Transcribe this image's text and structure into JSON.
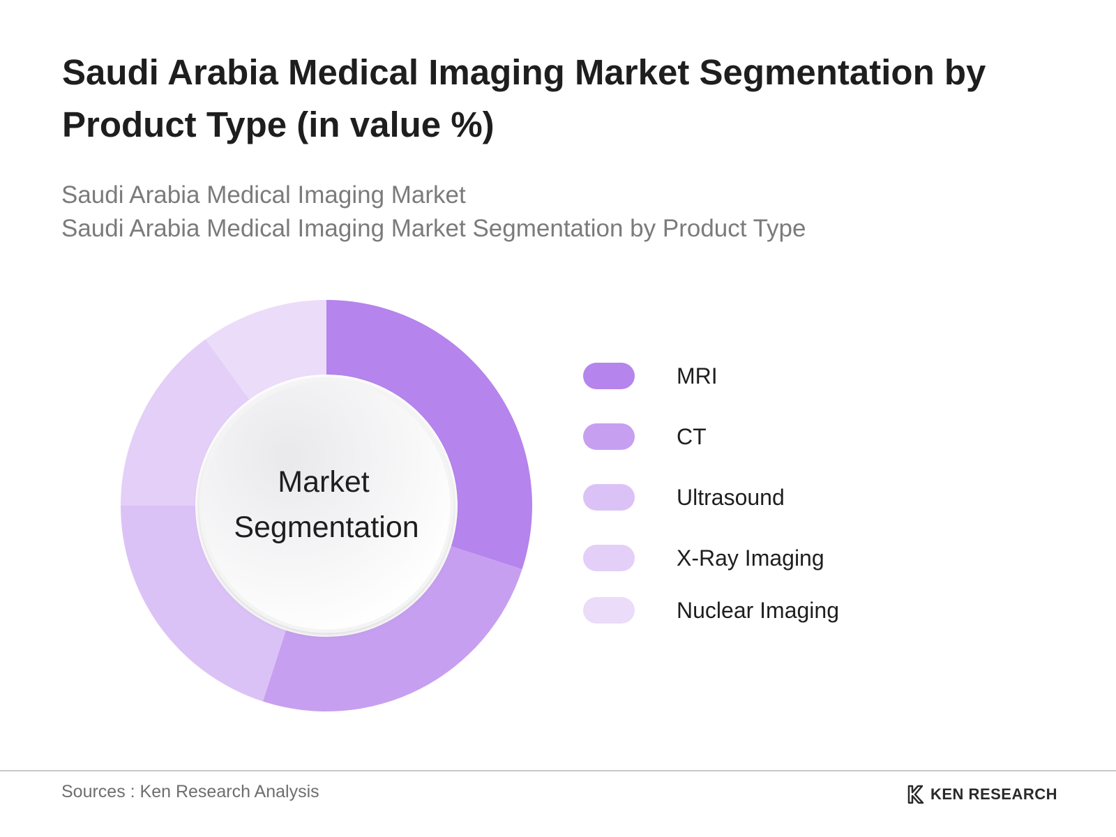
{
  "header": {
    "title": "Saudi Arabia Medical Imaging Market Segmentation by Product Type (in value %)",
    "subtitle_line1": "Saudi Arabia Medical Imaging Market",
    "subtitle_line2": "Saudi Arabia Medical Imaging Market Segmentation by Product Type"
  },
  "chart_data": {
    "type": "pie",
    "center_label": [
      "Market",
      "Segmentation"
    ],
    "categories": [
      "MRI",
      "CT",
      "Ultrasound",
      "X-Ray Imaging",
      "Nuclear Imaging"
    ],
    "values": [
      30,
      25,
      20,
      15,
      10
    ],
    "colors": [
      "#b584ec",
      "#c79ff0",
      "#dbc2f6",
      "#e3cff7",
      "#ebdcf9"
    ],
    "legend_position": "right"
  },
  "footer": {
    "source": "Sources : Ken Research Analysis",
    "brand": "KEN RESEARCH"
  }
}
